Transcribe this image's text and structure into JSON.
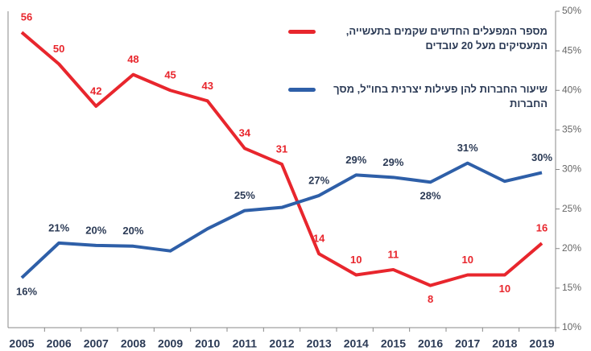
{
  "chart_data": {
    "type": "line",
    "categories": [
      "2005",
      "2006",
      "2007",
      "2008",
      "2009",
      "2010",
      "2011",
      "2012",
      "2013",
      "2014",
      "2015",
      "2016",
      "2017",
      "2018",
      "2019"
    ],
    "series": [
      {
        "name": "מספר המפעלים החדשים שקמים בתעשייה, המעסיקים מעל 20 עובדים",
        "color": "#e8262d",
        "values": [
          56,
          50,
          42,
          48,
          45,
          43,
          34,
          31,
          14,
          10,
          11,
          8,
          10,
          10,
          16
        ]
      },
      {
        "name": "שיעור החברות להן פעילות יצרנית בחו\"ל, מסך החברות",
        "color": "#2e5fa8",
        "axis": "y2",
        "values": [
          16.3,
          20.7,
          20.4,
          20.3,
          19.7,
          22.5,
          24.8,
          25.2,
          26.7,
          29.3,
          29.0,
          28.4,
          30.8,
          28.5,
          29.6
        ],
        "value_labels": [
          "16%",
          "21%",
          "20%",
          "20%",
          null,
          null,
          "25%",
          null,
          "27%",
          "29%",
          "29%",
          "28%",
          "31%",
          null,
          "30%"
        ]
      }
    ],
    "ylim": [
      0,
      60
    ],
    "y2lim": [
      10,
      50
    ],
    "y2ticks": [
      {
        "value": 10,
        "label": "10%"
      },
      {
        "value": 15,
        "label": "15%"
      },
      {
        "value": 20,
        "label": "20%"
      },
      {
        "value": 25,
        "label": "25%"
      },
      {
        "value": 30,
        "label": "30%"
      },
      {
        "value": 35,
        "label": "35%"
      },
      {
        "value": 40,
        "label": "40%"
      },
      {
        "value": 45,
        "label": "45%"
      },
      {
        "value": 50,
        "label": "50%"
      }
    ],
    "legend": "top-right"
  }
}
